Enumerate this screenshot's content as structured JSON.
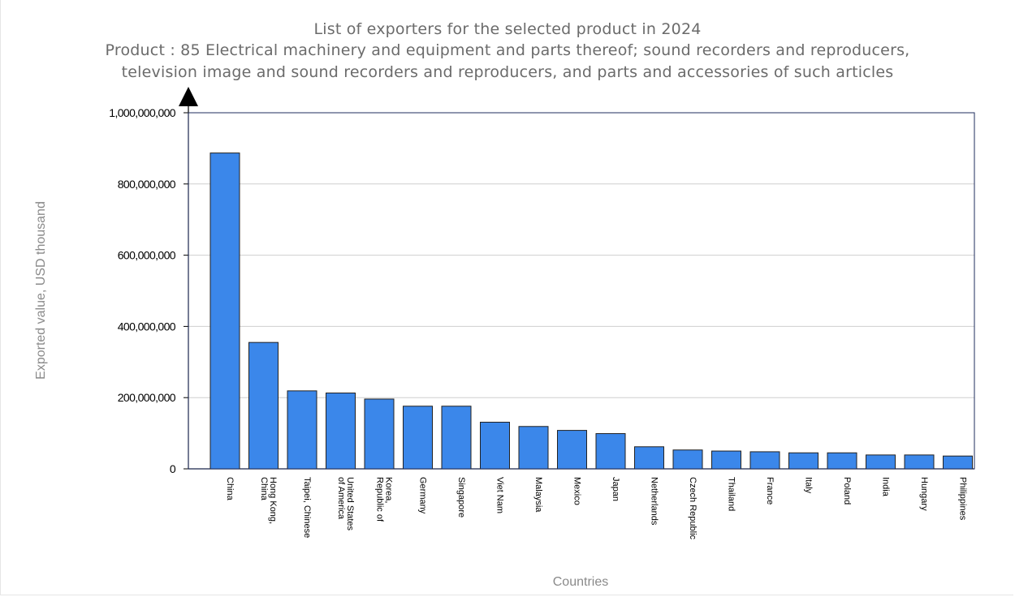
{
  "chart_data": {
    "type": "bar",
    "title": "List of exporters for the selected product in 2024",
    "subtitle_line1": "Product : 85 Electrical machinery and equipment and parts thereof; sound recorders and reproducers,",
    "subtitle_line2": "television image and sound recorders and reproducers, and parts and accessories of such articles",
    "xlabel": "Countries",
    "ylabel": "Exported value, USD thousand",
    "ylim": [
      0,
      1000000000
    ],
    "yticks": [
      0,
      200000000,
      400000000,
      600000000,
      800000000,
      1000000000
    ],
    "ytick_labels": [
      "0",
      "200,000,000",
      "400,000,000",
      "600,000,000",
      "800,000,000",
      "1,000,000,000"
    ],
    "categories": [
      [
        "China"
      ],
      [
        "Hong Kong,",
        "China"
      ],
      [
        "Taipei, Chinese"
      ],
      [
        "United States",
        "of America"
      ],
      [
        "Korea,",
        "Republic of"
      ],
      [
        "Germany"
      ],
      [
        "Singapore"
      ],
      [
        "Viet Nam"
      ],
      [
        "Malaysia"
      ],
      [
        "Mexico"
      ],
      [
        "Japan"
      ],
      [
        "Netherlands"
      ],
      [
        "Czech Republic"
      ],
      [
        "Thailand"
      ],
      [
        "France"
      ],
      [
        "Italy"
      ],
      [
        "Poland"
      ],
      [
        "India"
      ],
      [
        "Hungary"
      ],
      [
        "Philippines"
      ]
    ],
    "values": [
      887000000,
      355000000,
      219000000,
      213000000,
      196000000,
      176000000,
      176000000,
      131000000,
      119000000,
      108000000,
      99000000,
      62000000,
      53000000,
      50000000,
      48000000,
      45000000,
      45000000,
      39000000,
      39000000,
      36000000
    ],
    "colors": {
      "bar": "#3b87ea",
      "bar_border": "#222222",
      "axis": "#1f2d5c",
      "grid": "#cfcfcf"
    }
  }
}
